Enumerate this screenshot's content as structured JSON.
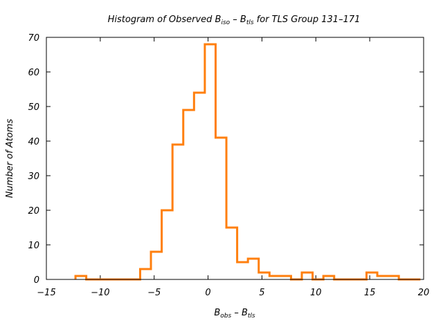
{
  "chart_data": {
    "type": "bar",
    "title": {
      "pre": "Histogram of Observed B",
      "sub1": "iso",
      "mid": " – B",
      "sub2": "tls",
      "post": " for TLS Group 131–171"
    },
    "xlabel": {
      "pre": "B",
      "sub1": "obs",
      "mid": " – B",
      "sub2": "tls"
    },
    "ylabel": "Number of Atoms",
    "xlim": [
      -15,
      20
    ],
    "ylim": [
      0,
      70
    ],
    "x_ticks": [
      -15,
      -10,
      -5,
      0,
      5,
      10,
      15,
      20
    ],
    "x_tick_labels": [
      "−15",
      "−10",
      "−5",
      "0",
      "5",
      "10",
      "15",
      "20"
    ],
    "y_ticks": [
      0,
      10,
      20,
      30,
      40,
      50,
      60,
      70
    ],
    "y_tick_labels": [
      "0",
      "10",
      "20",
      "30",
      "40",
      "50",
      "60",
      "70"
    ],
    "grid": false,
    "legend": "none",
    "bin_edges": [
      -12.3,
      -11.3,
      -10.3,
      -9.3,
      -8.3,
      -7.3,
      -6.3,
      -5.3,
      -4.3,
      -3.3,
      -2.3,
      -1.3,
      -0.3,
      0.7,
      1.7,
      2.7,
      3.7,
      4.7,
      5.7,
      6.7,
      7.7,
      8.7,
      9.7,
      10.7,
      11.7,
      12.7,
      13.7,
      14.7,
      15.7,
      16.7,
      17.7,
      18.7,
      19.7
    ],
    "values": [
      1,
      0,
      0,
      0,
      0,
      0,
      3,
      8,
      20,
      39,
      49,
      54,
      68,
      41,
      15,
      5,
      6,
      2,
      1,
      1,
      0,
      2,
      0,
      1,
      0,
      0,
      0,
      2,
      1,
      1,
      0,
      0
    ],
    "line_color": "#ff7f0e"
  }
}
